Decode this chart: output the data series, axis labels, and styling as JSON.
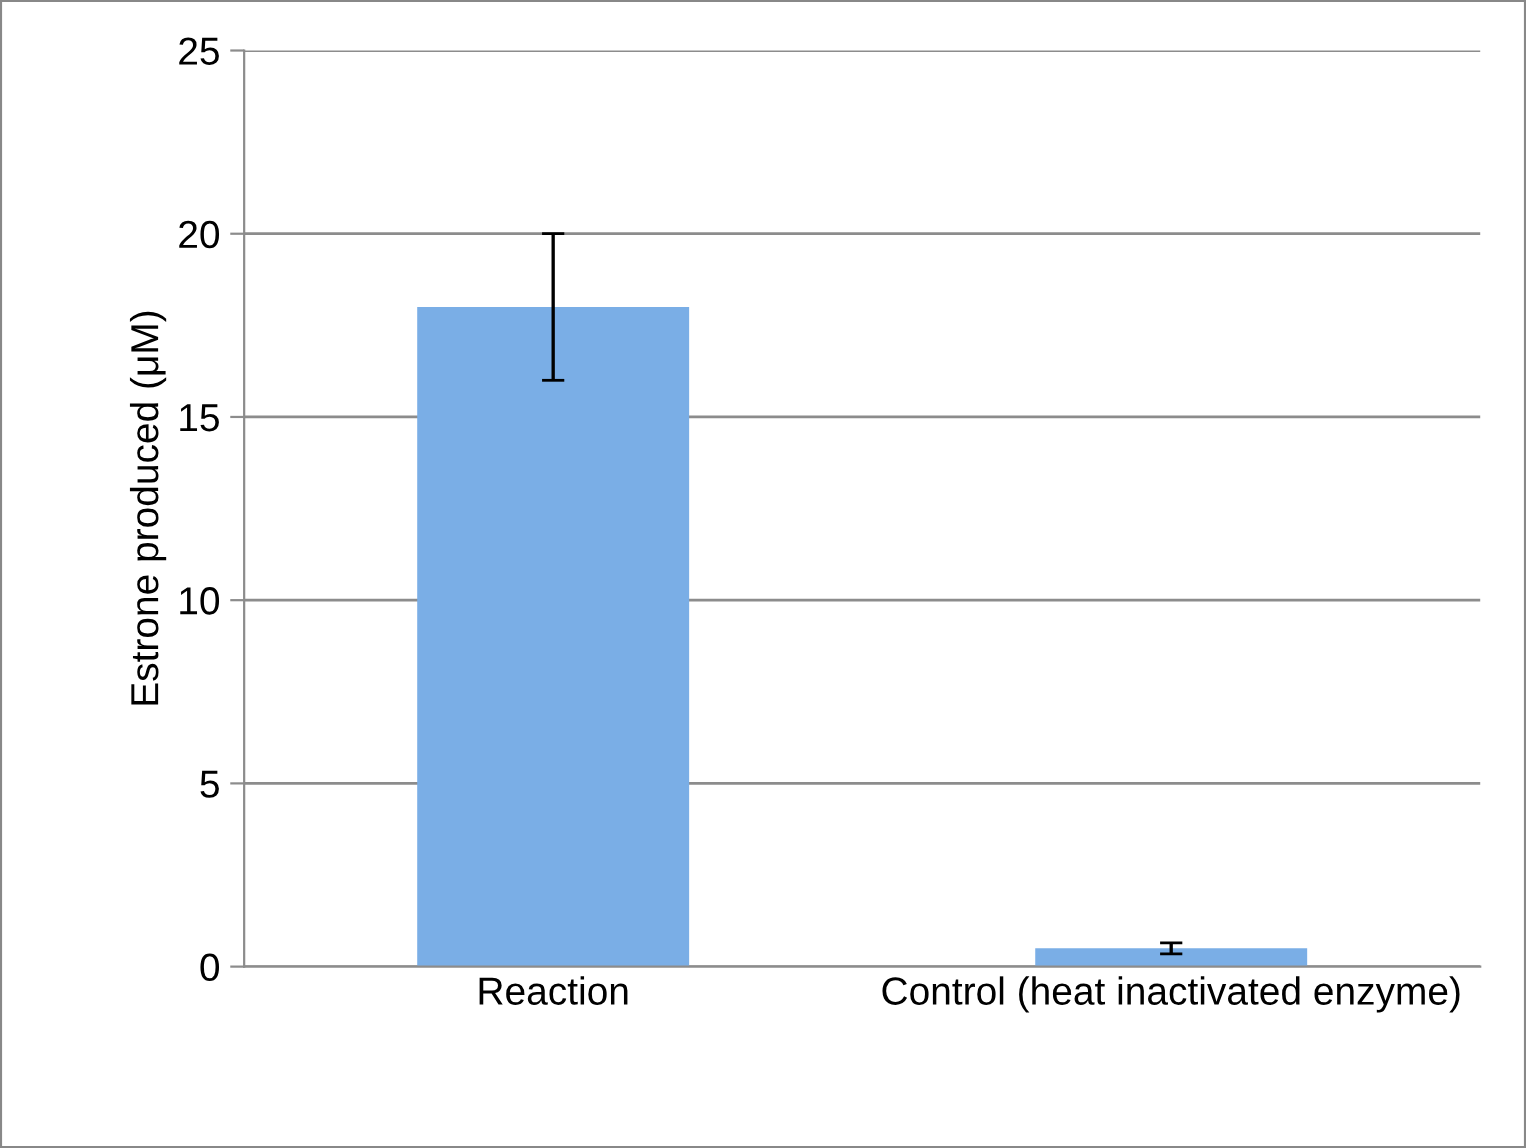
{
  "chart_data": {
    "type": "bar",
    "ylabel": "Estrone produced (μM)",
    "categories": [
      "Reaction",
      "Control (heat inactivated enzyme)"
    ],
    "values": [
      18,
      0.5
    ],
    "errors": [
      2,
      0.15
    ],
    "color": "#7aaee6",
    "ylim": [
      0,
      25
    ],
    "yticks": [
      0,
      5,
      10,
      15,
      20,
      25
    ],
    "grid": "y"
  }
}
